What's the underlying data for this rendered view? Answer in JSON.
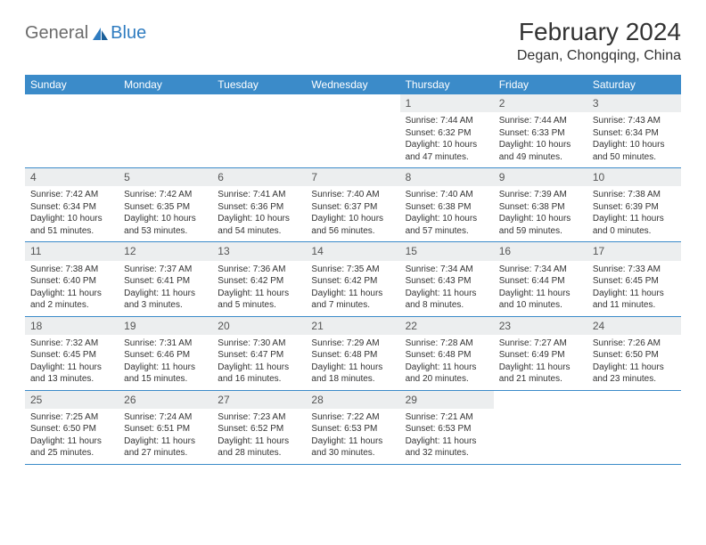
{
  "logo": {
    "general": "General",
    "blue": "Blue"
  },
  "title": {
    "month": "February 2024",
    "location": "Degan, Chongqing, China"
  },
  "colors": {
    "header_bg": "#3b8bc9",
    "header_text": "#ffffff",
    "daynum_bg": "#eceeef",
    "rule": "#3b8bc9",
    "logo_gray": "#6b6b6b",
    "logo_blue": "#2f7cc0"
  },
  "weekdays": [
    "Sunday",
    "Monday",
    "Tuesday",
    "Wednesday",
    "Thursday",
    "Friday",
    "Saturday"
  ],
  "weeks": [
    [
      null,
      null,
      null,
      null,
      {
        "n": "1",
        "sr": "7:44 AM",
        "ss": "6:32 PM",
        "dl": "10 hours and 47 minutes."
      },
      {
        "n": "2",
        "sr": "7:44 AM",
        "ss": "6:33 PM",
        "dl": "10 hours and 49 minutes."
      },
      {
        "n": "3",
        "sr": "7:43 AM",
        "ss": "6:34 PM",
        "dl": "10 hours and 50 minutes."
      }
    ],
    [
      {
        "n": "4",
        "sr": "7:42 AM",
        "ss": "6:34 PM",
        "dl": "10 hours and 51 minutes."
      },
      {
        "n": "5",
        "sr": "7:42 AM",
        "ss": "6:35 PM",
        "dl": "10 hours and 53 minutes."
      },
      {
        "n": "6",
        "sr": "7:41 AM",
        "ss": "6:36 PM",
        "dl": "10 hours and 54 minutes."
      },
      {
        "n": "7",
        "sr": "7:40 AM",
        "ss": "6:37 PM",
        "dl": "10 hours and 56 minutes."
      },
      {
        "n": "8",
        "sr": "7:40 AM",
        "ss": "6:38 PM",
        "dl": "10 hours and 57 minutes."
      },
      {
        "n": "9",
        "sr": "7:39 AM",
        "ss": "6:38 PM",
        "dl": "10 hours and 59 minutes."
      },
      {
        "n": "10",
        "sr": "7:38 AM",
        "ss": "6:39 PM",
        "dl": "11 hours and 0 minutes."
      }
    ],
    [
      {
        "n": "11",
        "sr": "7:38 AM",
        "ss": "6:40 PM",
        "dl": "11 hours and 2 minutes."
      },
      {
        "n": "12",
        "sr": "7:37 AM",
        "ss": "6:41 PM",
        "dl": "11 hours and 3 minutes."
      },
      {
        "n": "13",
        "sr": "7:36 AM",
        "ss": "6:42 PM",
        "dl": "11 hours and 5 minutes."
      },
      {
        "n": "14",
        "sr": "7:35 AM",
        "ss": "6:42 PM",
        "dl": "11 hours and 7 minutes."
      },
      {
        "n": "15",
        "sr": "7:34 AM",
        "ss": "6:43 PM",
        "dl": "11 hours and 8 minutes."
      },
      {
        "n": "16",
        "sr": "7:34 AM",
        "ss": "6:44 PM",
        "dl": "11 hours and 10 minutes."
      },
      {
        "n": "17",
        "sr": "7:33 AM",
        "ss": "6:45 PM",
        "dl": "11 hours and 11 minutes."
      }
    ],
    [
      {
        "n": "18",
        "sr": "7:32 AM",
        "ss": "6:45 PM",
        "dl": "11 hours and 13 minutes."
      },
      {
        "n": "19",
        "sr": "7:31 AM",
        "ss": "6:46 PM",
        "dl": "11 hours and 15 minutes."
      },
      {
        "n": "20",
        "sr": "7:30 AM",
        "ss": "6:47 PM",
        "dl": "11 hours and 16 minutes."
      },
      {
        "n": "21",
        "sr": "7:29 AM",
        "ss": "6:48 PM",
        "dl": "11 hours and 18 minutes."
      },
      {
        "n": "22",
        "sr": "7:28 AM",
        "ss": "6:48 PM",
        "dl": "11 hours and 20 minutes."
      },
      {
        "n": "23",
        "sr": "7:27 AM",
        "ss": "6:49 PM",
        "dl": "11 hours and 21 minutes."
      },
      {
        "n": "24",
        "sr": "7:26 AM",
        "ss": "6:50 PM",
        "dl": "11 hours and 23 minutes."
      }
    ],
    [
      {
        "n": "25",
        "sr": "7:25 AM",
        "ss": "6:50 PM",
        "dl": "11 hours and 25 minutes."
      },
      {
        "n": "26",
        "sr": "7:24 AM",
        "ss": "6:51 PM",
        "dl": "11 hours and 27 minutes."
      },
      {
        "n": "27",
        "sr": "7:23 AM",
        "ss": "6:52 PM",
        "dl": "11 hours and 28 minutes."
      },
      {
        "n": "28",
        "sr": "7:22 AM",
        "ss": "6:53 PM",
        "dl": "11 hours and 30 minutes."
      },
      {
        "n": "29",
        "sr": "7:21 AM",
        "ss": "6:53 PM",
        "dl": "11 hours and 32 minutes."
      },
      null,
      null
    ]
  ],
  "labels": {
    "sunrise": "Sunrise:",
    "sunset": "Sunset:",
    "daylight": "Daylight:"
  }
}
